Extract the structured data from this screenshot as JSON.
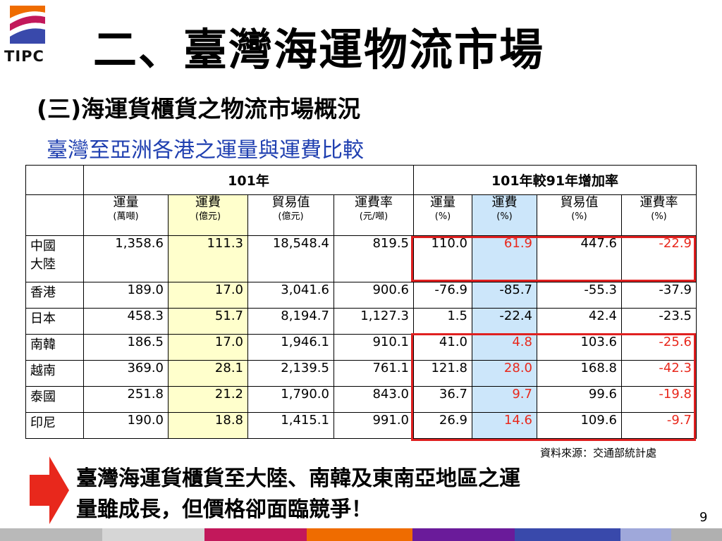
{
  "logo": {
    "text": "TIPC"
  },
  "title": "二、臺灣海運物流市場",
  "subtitle": "(三)海運貨櫃貨之物流市場概況",
  "caption": "臺灣至亞洲各港之運量與運費比較",
  "table": {
    "group_headers": [
      "101年",
      "101年較91年增加率"
    ],
    "columns": [
      {
        "label": "運量",
        "unit": "(萬噸)"
      },
      {
        "label": "運費",
        "unit": "(億元)"
      },
      {
        "label": "貿易值",
        "unit": "(億元)"
      },
      {
        "label": "運費率",
        "unit": "(元/噸)"
      },
      {
        "label": "運量",
        "unit": "(%)"
      },
      {
        "label": "運費",
        "unit": "(%)"
      },
      {
        "label": "貿易值",
        "unit": "(%)"
      },
      {
        "label": "運費率",
        "unit": "(%)"
      }
    ],
    "rows": [
      {
        "name_line1": "中國",
        "name_line2": "大陸",
        "values": [
          "1,358.6",
          "111.3",
          "18,548.4",
          "819.5",
          "110.0",
          "61.9",
          "447.6",
          "-22.9"
        ]
      },
      {
        "name_line1": "香港",
        "name_line2": "",
        "values": [
          "189.0",
          "17.0",
          "3,041.6",
          "900.6",
          "-76.9",
          "-85.7",
          "-55.3",
          "-37.9"
        ]
      },
      {
        "name_line1": "日本",
        "name_line2": "",
        "values": [
          "458.3",
          "51.7",
          "8,194.7",
          "1,127.3",
          "1.5",
          "-22.4",
          "42.4",
          "-23.5"
        ]
      },
      {
        "name_line1": "南韓",
        "name_line2": "",
        "values": [
          "186.5",
          "17.0",
          "1,946.1",
          "910.1",
          "41.0",
          "4.8",
          "103.6",
          "-25.6"
        ]
      },
      {
        "name_line1": "越南",
        "name_line2": "",
        "values": [
          "369.0",
          "28.1",
          "2,139.5",
          "761.1",
          "121.8",
          "28.0",
          "168.8",
          "-42.3"
        ]
      },
      {
        "name_line1": "泰國",
        "name_line2": "",
        "values": [
          "251.8",
          "21.2",
          "1,790.0",
          "843.0",
          "36.7",
          "9.7",
          "99.6",
          "-19.8"
        ]
      },
      {
        "name_line1": "印尼",
        "name_line2": "",
        "values": [
          "190.0",
          "18.8",
          "1,415.1",
          "991.0",
          "26.9",
          "14.6",
          "109.6",
          "-9.7"
        ]
      }
    ]
  },
  "source": "資料來源：交通部統計處",
  "conclusion": {
    "line1": "臺灣海運貨櫃貨至大陸、南韓及東南亞地區之運",
    "line2": "量雖成長，但價格卻面臨競爭！"
  },
  "page_number": "9",
  "colors": {
    "highlight_red": "#e02020",
    "freight_column": "#ffffcc",
    "growth_freight_column": "#cce6fa",
    "red_text": "#e8281c",
    "caption_blue": "#1f3fb0",
    "footer": [
      "#b9b9b9",
      "#d6d6d6",
      "#c2185b",
      "#ef6c00",
      "#6a1b9a",
      "#3949ab",
      "#9fa8da",
      "#b0b0b0"
    ]
  }
}
